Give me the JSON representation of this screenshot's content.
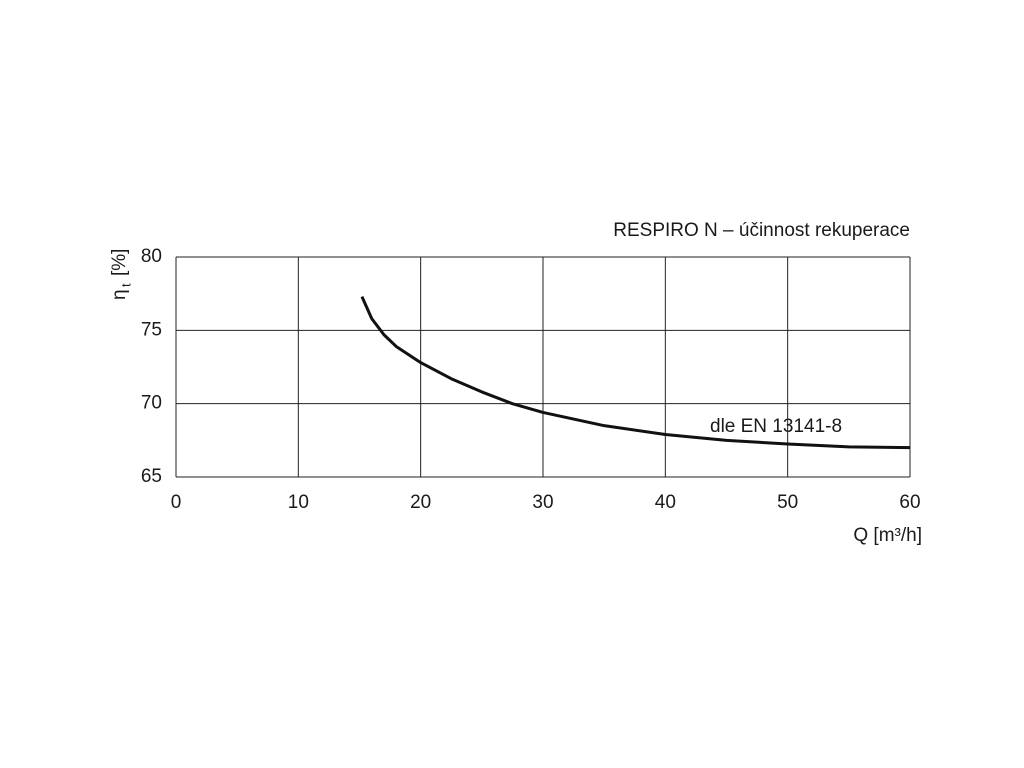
{
  "chart_data": {
    "type": "line",
    "title": "RESPIRO N – účinnost rekuperace",
    "y_label": "η",
    "y_label_sub": "t",
    "y_label_unit": "[%]",
    "x_label": "Q [m³/h]",
    "annotation": "dle EN 13141-8",
    "x": [
      15.2,
      16,
      17,
      18,
      20,
      22.5,
      25,
      27.5,
      30,
      35,
      40,
      45,
      50,
      55,
      60
    ],
    "series": [
      {
        "name": "η",
        "color": "#111111",
        "values": [
          77.3,
          75.8,
          74.7,
          73.9,
          72.8,
          71.7,
          70.8,
          70.0,
          69.4,
          68.5,
          67.9,
          67.5,
          67.25,
          67.05,
          67.0
        ]
      }
    ],
    "xlim": [
      0,
      60
    ],
    "xticks": [
      0,
      10,
      20,
      30,
      40,
      50,
      60
    ],
    "ylim": [
      65,
      80
    ],
    "yticks": [
      65,
      70,
      75,
      80
    ],
    "grid": true
  }
}
